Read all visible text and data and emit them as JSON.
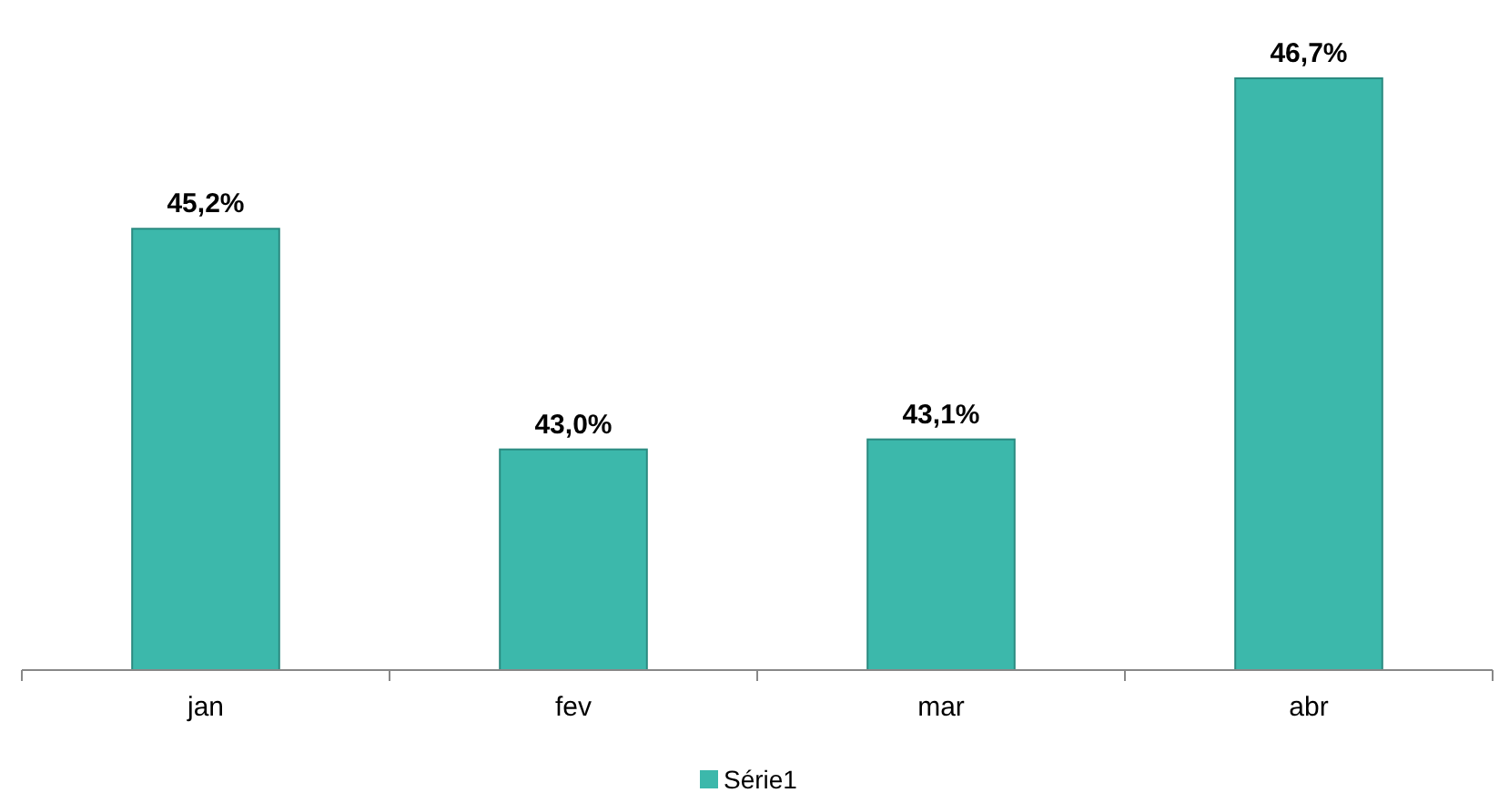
{
  "chart_data": {
    "type": "bar",
    "categories": [
      "jan",
      "fev",
      "mar",
      "abr"
    ],
    "series": [
      {
        "name": "Série1",
        "color": "#3cb8ab",
        "values": [
          45.2,
          43.0,
          43.1,
          46.7
        ],
        "value_labels": [
          "45,2%",
          "43,0%",
          "43,1%",
          "46,7%"
        ]
      }
    ],
    "ylim": [
      40.8,
      46.7
    ],
    "tick_labels": "x",
    "legend": "bottom"
  }
}
